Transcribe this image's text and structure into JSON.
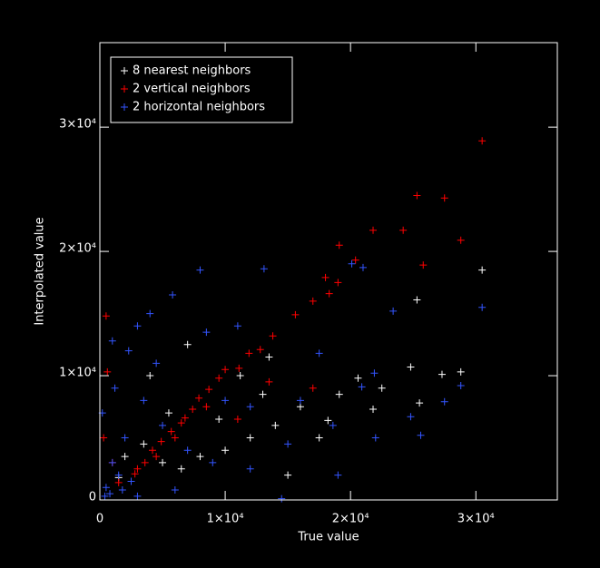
{
  "chart_data": {
    "type": "scatter",
    "x_label": "True value",
    "y_label": "Interpolated value",
    "xlim": [
      0,
      36500
    ],
    "ylim": [
      0,
      36800
    ],
    "xticks": [
      0,
      {
        "value": 10000,
        "label": "1×10⁴"
      },
      {
        "value": 20000,
        "label": "2×10⁴"
      },
      {
        "value": 30000,
        "label": "3×10⁴"
      }
    ],
    "yticks": [
      0,
      {
        "value": 10000,
        "label": "1×10⁴"
      },
      {
        "value": 20000,
        "label": "2×10⁴"
      },
      {
        "value": 30000,
        "label": "3×10⁴"
      }
    ],
    "legend": "upper left",
    "series": [
      {
        "name": "8 nearest neighbors",
        "color": "#ffffff",
        "x": [
          30500,
          25300,
          25500,
          27300,
          28800,
          24800,
          21800,
          20600,
          19100,
          18200,
          17500,
          13000,
          14000,
          12000,
          10000,
          8000,
          6500,
          5000,
          3500,
          2000,
          1500,
          7000,
          11200,
          16000,
          15000,
          9500,
          4000,
          13500,
          5500,
          22500
        ],
        "values": [
          18500,
          16100,
          7800,
          10100,
          10300,
          10700,
          7300,
          9800,
          8500,
          6400,
          5000,
          8500,
          6000,
          5000,
          4000,
          3500,
          2500,
          3000,
          4500,
          3500,
          1800,
          12500,
          10000,
          7500,
          2000,
          6500,
          10000,
          11500,
          7000,
          9000
        ]
      },
      {
        "name": "2 vertical neighbors",
        "color": "#ff0000",
        "x": [
          30500,
          25300,
          27500,
          21800,
          24200,
          28800,
          19100,
          20400,
          25800,
          18000,
          19000,
          18300,
          17000,
          15600,
          13800,
          12800,
          11900,
          11100,
          9500,
          8700,
          7900,
          7400,
          6500,
          5700,
          4900,
          4200,
          3600,
          2800,
          1500,
          600,
          500,
          13500,
          17000,
          11000,
          6800,
          6000,
          4500,
          3000,
          8500,
          10000,
          300,
          1000
        ],
        "values": [
          28900,
          24500,
          24300,
          21700,
          21700,
          20900,
          20500,
          19300,
          18900,
          17900,
          17500,
          16600,
          16000,
          14900,
          13200,
          12100,
          11800,
          10600,
          9800,
          8900,
          8200,
          7300,
          6200,
          5500,
          4700,
          4000,
          3000,
          2100,
          1400,
          10300,
          14800,
          9500,
          9000,
          6500,
          6600,
          5000,
          3500,
          2500,
          7500,
          10500,
          5000,
          3000
        ]
      },
      {
        "name": "2 horizontal neighbors",
        "color": "#3355ff",
        "x": [
          30500,
          24800,
          25600,
          27500,
          28800,
          21900,
          20900,
          23400,
          20100,
          21000,
          13100,
          8000,
          5800,
          4000,
          3000,
          1000,
          2300,
          17500,
          18600,
          22000,
          15000,
          12000,
          10000,
          16000,
          9000,
          7000,
          5000,
          3500,
          2000,
          1000,
          500,
          1500,
          2500,
          800,
          3000,
          6000,
          14500,
          12000,
          19000,
          200,
          1200,
          4500,
          8500,
          11000,
          400,
          1800
        ],
        "values": [
          15500,
          6700,
          5200,
          7900,
          9200,
          10200,
          9100,
          15200,
          19000,
          18700,
          18600,
          18500,
          16500,
          15000,
          14000,
          12800,
          12000,
          11800,
          6000,
          5000,
          4500,
          7500,
          8000,
          8000,
          3000,
          4000,
          6000,
          8000,
          5000,
          3000,
          1000,
          2000,
          1500,
          500,
          300,
          800,
          100,
          2500,
          2000,
          7000,
          9000,
          11000,
          13500,
          14000,
          300,
          800
        ]
      }
    ]
  }
}
